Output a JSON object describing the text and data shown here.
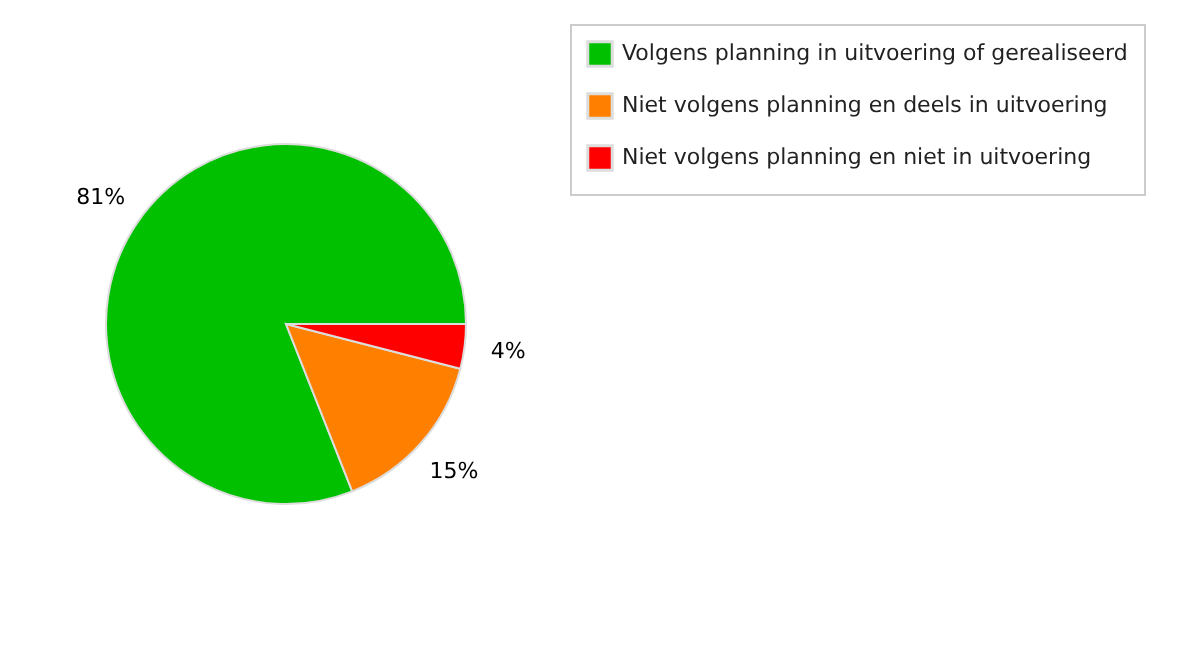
{
  "chart_data": {
    "type": "pie",
    "categories": [
      "Volgens planning in uitvoering of gerealiseerd",
      "Niet volgens planning en deels in uitvoering",
      "Niet volgens planning en niet in uitvoering"
    ],
    "values": [
      81,
      15,
      4
    ],
    "colors": [
      "#00c000",
      "#ff8000",
      "#ff0000"
    ],
    "value_labels": [
      "81%",
      "15%",
      "4%"
    ],
    "legend": "top right"
  }
}
